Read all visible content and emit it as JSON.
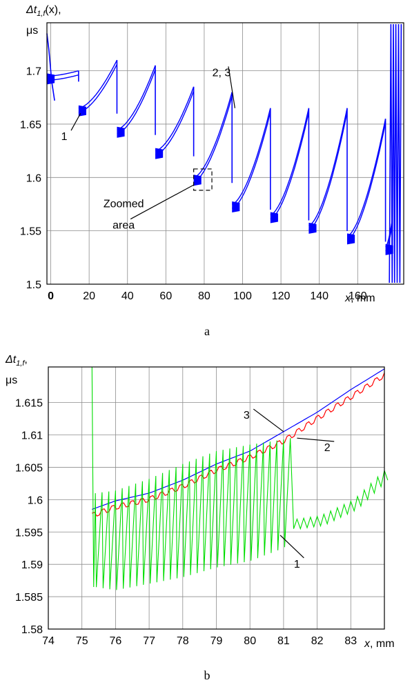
{
  "chart_data": [
    {
      "id": "a",
      "type": "line",
      "caption": "a",
      "ylabel_italic": "Δt",
      "ylabel_sub": "1,f",
      "ylabel_arg": "(x),",
      "ylabel_unit": "μs",
      "xlabel_var": "x",
      "xlabel_unit": ", mm",
      "xlim": [
        -2,
        184
      ],
      "ylim": [
        1.5,
        1.745
      ],
      "x_ticks": [
        0,
        20,
        40,
        60,
        80,
        100,
        120,
        140,
        160
      ],
      "x_tick_labels": [
        "0",
        "20",
        "40",
        "60",
        "80",
        "100",
        "120",
        "140",
        "160"
      ],
      "y_ticks": [
        1.5,
        1.55,
        1.6,
        1.65,
        1.7
      ],
      "y_tick_labels": [
        "1.5",
        "1.55",
        "1.6",
        "1.65",
        "1.7"
      ],
      "grid": true,
      "series": [
        {
          "color": "#0000ff",
          "segments": [
            {
              "x0": -2,
              "x1": 14.5,
              "y0": 1.695,
              "y1": 1.7
            },
            {
              "x0": 14.5,
              "x1": 34.5,
              "y0": 1.665,
              "y1": 1.71
            },
            {
              "x0": 34.5,
              "x1": 54.5,
              "y0": 1.645,
              "y1": 1.705
            },
            {
              "x0": 54.5,
              "x1": 74.5,
              "y0": 1.625,
              "y1": 1.685
            },
            {
              "x0": 74.5,
              "x1": 94.5,
              "y0": 1.6,
              "y1": 1.68
            },
            {
              "x0": 94.5,
              "x1": 114.5,
              "y0": 1.575,
              "y1": 1.665
            },
            {
              "x0": 114.5,
              "x1": 134.5,
              "y0": 1.565,
              "y1": 1.665
            },
            {
              "x0": 134.5,
              "x1": 154.5,
              "y0": 1.555,
              "y1": 1.665
            },
            {
              "x0": 154.5,
              "x1": 174.5,
              "y0": 1.545,
              "y1": 1.655
            },
            {
              "x0": 174.5,
              "x1": 178.0,
              "y0": 1.535,
              "y1": 1.56
            }
          ]
        }
      ],
      "annotations": [
        {
          "text": "2, 3",
          "x": 89,
          "y": 1.695,
          "tx": 96,
          "ty": 1.665
        },
        {
          "text": "1",
          "x": 7,
          "y": 1.635,
          "tx": 15.5,
          "ty": 1.66
        },
        {
          "text": "Zoomed",
          "x": 38,
          "y": 1.572
        },
        {
          "text": "area",
          "x": 38,
          "y": 1.552,
          "tx": 74.5,
          "ty": 1.593
        }
      ],
      "zoom_box": {
        "x0": 74.5,
        "x1": 84,
        "y0": 1.588,
        "y1": 1.608
      }
    },
    {
      "id": "b",
      "type": "line",
      "caption": "b",
      "ylabel_italic": "Δt",
      "ylabel_sub": "1,f",
      "ylabel_arg": ",",
      "ylabel_unit": "μs",
      "xlabel_var": "x",
      "xlabel_unit": ", mm",
      "xlim": [
        74,
        84
      ],
      "ylim": [
        1.58,
        1.6205
      ],
      "x_ticks": [
        74,
        75,
        76,
        77,
        78,
        79,
        80,
        81,
        82,
        83
      ],
      "x_tick_labels": [
        "74",
        "75",
        "76",
        "77",
        "78",
        "79",
        "80",
        "81",
        "82",
        "83"
      ],
      "y_ticks": [
        1.58,
        1.585,
        1.59,
        1.595,
        1.6,
        1.605,
        1.61,
        1.615
      ],
      "y_tick_labels": [
        "1.58",
        "1.585",
        "1.59",
        "1.595",
        "1.6",
        "1.605",
        "1.61",
        "1.615"
      ],
      "grid": true,
      "series": [
        {
          "label": "3",
          "color": "#0000ff",
          "x": [
            75.3,
            76.0,
            77.0,
            78.0,
            79.0,
            80.0,
            81.0,
            82.0,
            83.0,
            84.0
          ],
          "y": [
            1.5985,
            1.5998,
            1.601,
            1.603,
            1.6055,
            1.6075,
            1.6105,
            1.6135,
            1.617,
            1.6202
          ]
        },
        {
          "label": "2",
          "color": "#ff0000",
          "x": [
            75.3,
            76.0,
            77.0,
            78.0,
            79.0,
            80.0,
            81.0,
            82.0,
            83.0,
            84.0
          ],
          "y": [
            1.5975,
            1.5988,
            1.6,
            1.602,
            1.6045,
            1.6065,
            1.609,
            1.6125,
            1.6158,
            1.6192
          ]
        },
        {
          "label": "1",
          "color": "#00dd00",
          "x": [
            75.3,
            75.35,
            75.4,
            76.0,
            77.0,
            78.0,
            79.0,
            80.0,
            81.0,
            81.2,
            81.3,
            82.0,
            83.0,
            84.0
          ],
          "y": [
            1.622,
            1.5865,
            1.601,
            1.6014,
            1.6032,
            1.6055,
            1.6075,
            1.6085,
            1.6093,
            1.6095,
            1.5955,
            1.596,
            1.5985,
            1.6035
          ],
          "min_y": [
            1.5865,
            1.5865,
            1.5865,
            1.586,
            1.587,
            1.588,
            1.5895,
            1.5905,
            1.5925,
            1.5935,
            1.5955,
            1.596,
            1.5985,
            1.6035
          ]
        }
      ],
      "annotations": [
        {
          "text": "3",
          "x": 79.9,
          "y": 1.6125,
          "tx": 81.0,
          "ty": 1.6105
        },
        {
          "text": "2",
          "x": 82.3,
          "y": 1.6075,
          "tx": 81.4,
          "ty": 1.6095
        },
        {
          "text": "1",
          "x": 81.4,
          "y": 1.5895,
          "tx": 80.9,
          "ty": 1.5945
        }
      ]
    }
  ]
}
